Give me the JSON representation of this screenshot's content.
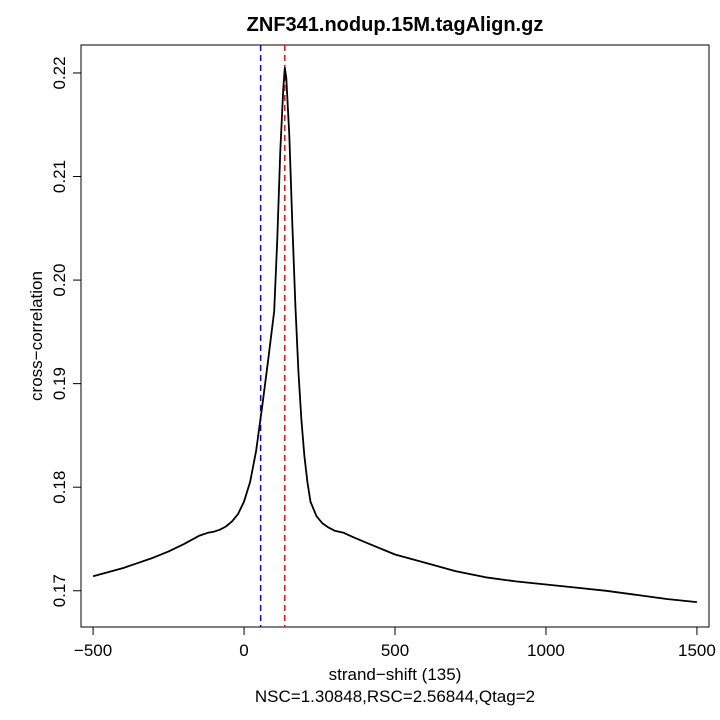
{
  "chart_data": {
    "type": "line",
    "title": "ZNF341.nodup.15M.tagAlign.gz",
    "xlabel": "strand−shift (135)",
    "ylabel": "cross−correlation",
    "subtitle": "NSC=1.30848,RSC=2.56844,Qtag=2",
    "xlim": [
      -540,
      1540
    ],
    "ylim": [
      0.1665,
      0.2227
    ],
    "xticks": [
      -500,
      0,
      500,
      1000,
      1500
    ],
    "xtick_labels": [
      "−500",
      "0",
      "500",
      "1000",
      "1500"
    ],
    "yticks": [
      0.17,
      0.18,
      0.19,
      0.2,
      0.21,
      0.22
    ],
    "ytick_labels": [
      "0.17",
      "0.18",
      "0.19",
      "0.20",
      "0.21",
      "0.22"
    ],
    "grid": false,
    "vlines": [
      {
        "x": 55,
        "color": "#0000ff",
        "style": "dashed"
      },
      {
        "x": 135,
        "color": "#ff0000",
        "style": "dashed"
      }
    ],
    "series": [
      {
        "color": "#000000",
        "x": [
          -500,
          -450,
          -400,
          -350,
          -300,
          -250,
          -200,
          -150,
          -120,
          -100,
          -80,
          -60,
          -40,
          -20,
          0,
          20,
          40,
          60,
          80,
          100,
          110,
          120,
          130,
          135,
          140,
          150,
          160,
          170,
          180,
          190,
          200,
          210,
          220,
          240,
          260,
          280,
          300,
          330,
          360,
          400,
          450,
          500,
          600,
          700,
          800,
          900,
          1000,
          1100,
          1200,
          1300,
          1400,
          1500
        ],
        "y": [
          0.1714,
          0.1718,
          0.1722,
          0.1727,
          0.1732,
          0.1738,
          0.1745,
          0.1753,
          0.1756,
          0.1757,
          0.1759,
          0.1762,
          0.1767,
          0.1774,
          0.1786,
          0.1805,
          0.1835,
          0.1878,
          0.1923,
          0.197,
          0.204,
          0.2125,
          0.2185,
          0.2205,
          0.2195,
          0.214,
          0.2055,
          0.1975,
          0.1912,
          0.1865,
          0.183,
          0.1805,
          0.1786,
          0.1772,
          0.1765,
          0.1761,
          0.1758,
          0.1756,
          0.1752,
          0.1747,
          0.1741,
          0.1735,
          0.1727,
          0.1719,
          0.1713,
          0.1709,
          0.1706,
          0.1703,
          0.17,
          0.1696,
          0.1692,
          0.1689
        ]
      }
    ]
  }
}
